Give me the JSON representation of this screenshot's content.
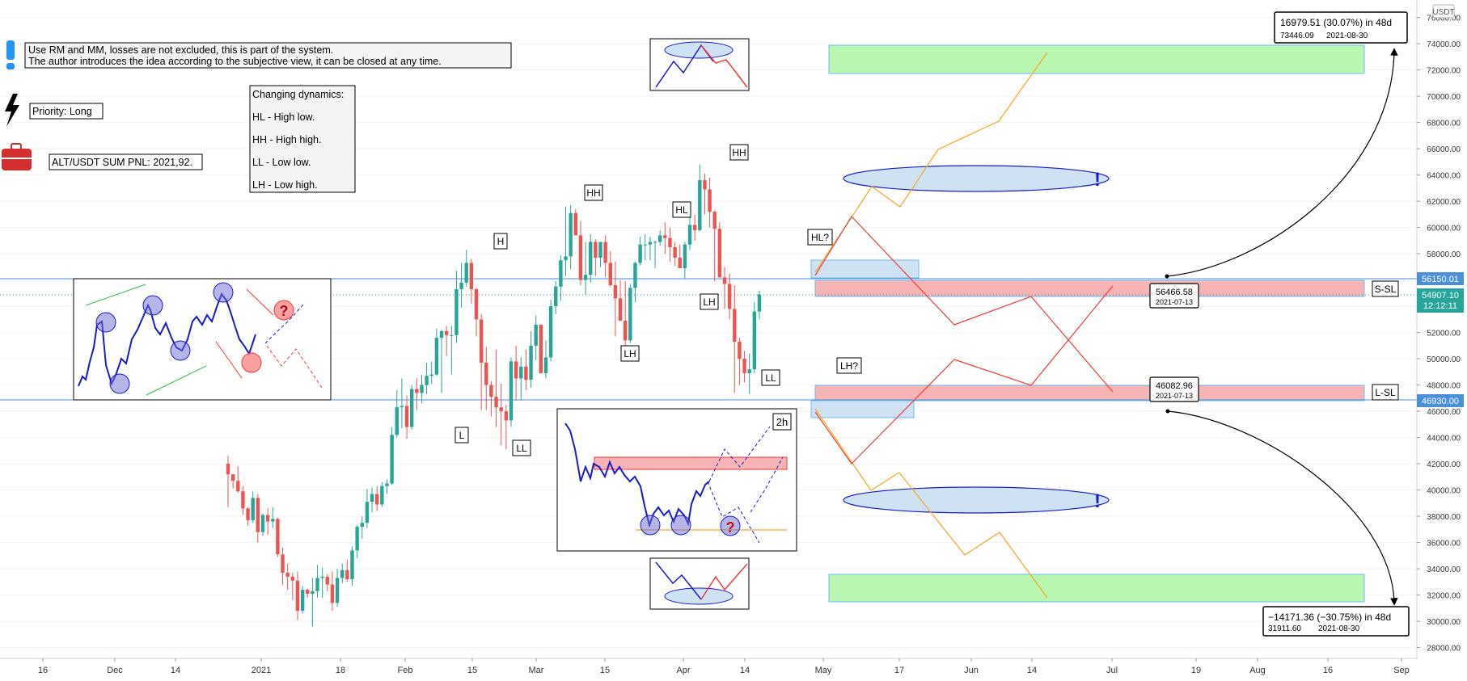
{
  "chart_data": {
    "type": "candlestick",
    "currency": "USDT",
    "y_axis": {
      "min": 27000,
      "max": 77000,
      "ticks": [
        "76000.00",
        "74000.00",
        "72000.00",
        "70000.00",
        "68000.00",
        "66000.00",
        "64000.00",
        "62000.00",
        "60000.00",
        "58000.00",
        "56000.00",
        "54000.00",
        "52000.00",
        "50000.00",
        "48000.00",
        "46000.00",
        "44000.00",
        "42000.00",
        "40000.00",
        "38000.00",
        "36000.00",
        "34000.00",
        "32000.00",
        "30000.00",
        "28000.00"
      ]
    },
    "x_axis": {
      "ticks": [
        {
          "label": "16",
          "x": 53
        },
        {
          "label": "Dec",
          "x": 142
        },
        {
          "label": "14",
          "x": 217
        },
        {
          "label": "2021",
          "x": 323
        },
        {
          "label": "18",
          "x": 421
        },
        {
          "label": "Feb",
          "x": 501
        },
        {
          "label": "15",
          "x": 584
        },
        {
          "label": "Mar",
          "x": 663
        },
        {
          "label": "15",
          "x": 748
        },
        {
          "label": "Apr",
          "x": 845
        },
        {
          "label": "14",
          "x": 921
        },
        {
          "label": "May",
          "x": 1018
        },
        {
          "label": "17",
          "x": 1112
        },
        {
          "label": "Jun",
          "x": 1201
        },
        {
          "label": "14",
          "x": 1276
        },
        {
          "label": "Jul",
          "x": 1375
        },
        {
          "label": "19",
          "x": 1479
        },
        {
          "label": "Aug",
          "x": 1555
        },
        {
          "label": "16",
          "x": 1642
        },
        {
          "label": "Sep",
          "x": 1733
        }
      ]
    },
    "price_badges": [
      {
        "value": "56150.01",
        "color": "#4a90d9"
      },
      {
        "value": "54907.10",
        "time": "12:12:11",
        "color": "#26a69a"
      },
      {
        "value": "46930.00",
        "color": "#4a90d9"
      }
    ],
    "side_labels": [
      "S-SL",
      "L-SL"
    ],
    "structure_labels": [
      "H",
      "L",
      "LL",
      "HH",
      "HL",
      "LH",
      "HH",
      "LH",
      "LL",
      "HL?",
      "LH?"
    ],
    "measure_top": {
      "line1": "16979.51 (30.07%) in 48d",
      "line2a": "73446.09",
      "line2b": "2021-08-30"
    },
    "measure_bottom": {
      "line1": "−14171.36 (−30.75%) in 48d",
      "line2a": "31911.60",
      "line2b": "2021-08-30"
    },
    "point_top": {
      "value": "56466.58",
      "date": "2021-07-13"
    },
    "point_bottom": {
      "value": "46082.96",
      "date": "2021-07-13"
    },
    "candles": [
      [
        42000,
        42600,
        38700,
        41200
      ],
      [
        41200,
        41000,
        40100,
        40700
      ],
      [
        40700,
        41800,
        39800,
        39900
      ],
      [
        39900,
        40300,
        38100,
        38600
      ],
      [
        38600,
        38700,
        37300,
        37700
      ],
      [
        37700,
        39900,
        37500,
        39400
      ],
      [
        39400,
        39700,
        36000,
        36800
      ],
      [
        36800,
        38200,
        36500,
        38100
      ],
      [
        38100,
        38600,
        36600,
        37600
      ],
      [
        37600,
        38700,
        37100,
        37800
      ],
      [
        37800,
        37900,
        34900,
        35100
      ],
      [
        35100,
        35600,
        32800,
        33700
      ],
      [
        33700,
        34400,
        32400,
        33400
      ],
      [
        33400,
        33700,
        31600,
        33100
      ],
      [
        33100,
        33800,
        30100,
        30800
      ],
      [
        30800,
        32700,
        30600,
        32400
      ],
      [
        32400,
        32500,
        31800,
        32100
      ],
      [
        32100,
        33300,
        29600,
        32300
      ],
      [
        32300,
        34300,
        31800,
        33300
      ],
      [
        33300,
        34100,
        31800,
        33400
      ],
      [
        33400,
        33600,
        32300,
        32800
      ],
      [
        32800,
        33800,
        30800,
        31400
      ],
      [
        31400,
        34000,
        31100,
        33300
      ],
      [
        33300,
        34400,
        32900,
        33900
      ],
      [
        33900,
        34700,
        33000,
        33200
      ],
      [
        33200,
        35700,
        32700,
        35400
      ],
      [
        35400,
        37300,
        34800,
        37200
      ],
      [
        37200,
        38000,
        36300,
        37500
      ],
      [
        37500,
        40100,
        37100,
        39100
      ],
      [
        39100,
        40200,
        38300,
        39700
      ],
      [
        39700,
        40300,
        38400,
        38900
      ],
      [
        38900,
        40600,
        38700,
        40300
      ],
      [
        40300,
        40800,
        39700,
        40500
      ],
      [
        40500,
        44800,
        40400,
        44200
      ],
      [
        44200,
        47600,
        44000,
        46300
      ],
      [
        46300,
        48500,
        44700,
        46400
      ],
      [
        46400,
        47200,
        43900,
        44800
      ],
      [
        44800,
        48000,
        44600,
        47700
      ],
      [
        47700,
        48500,
        46100,
        47400
      ],
      [
        47400,
        48800,
        46600,
        48000
      ],
      [
        48000,
        49700,
        47300,
        48700
      ],
      [
        48700,
        49800,
        48100,
        48800
      ],
      [
        48800,
        52300,
        48700,
        51600
      ],
      [
        51600,
        52200,
        47400,
        52100
      ],
      [
        52100,
        52500,
        50200,
        51800
      ],
      [
        51800,
        52500,
        48800,
        51800
      ],
      [
        51800,
        56700,
        51200,
        55300
      ],
      [
        55300,
        57300,
        53900,
        55800
      ],
      [
        55800,
        58300,
        55500,
        57300
      ],
      [
        57300,
        57600,
        54200,
        55300
      ],
      [
        55300,
        55400,
        51700,
        53000
      ],
      [
        53000,
        53400,
        46100,
        49700
      ],
      [
        49700,
        50900,
        46100,
        48000
      ],
      [
        48000,
        48300,
        45600,
        47100
      ],
      [
        47100,
        50700,
        44800,
        46300
      ],
      [
        46300,
        48100,
        43400,
        46000
      ],
      [
        46000,
        46500,
        43100,
        45300
      ],
      [
        45300,
        50100,
        44800,
        49800
      ],
      [
        49800,
        51000,
        46800,
        48500
      ],
      [
        48500,
        50100,
        46800,
        49400
      ],
      [
        49400,
        50700,
        47600,
        48400
      ],
      [
        48400,
        52100,
        47800,
        51000
      ],
      [
        51000,
        53300,
        49900,
        52600
      ],
      [
        52600,
        52600,
        48900,
        48900
      ],
      [
        48900,
        51400,
        48500,
        50100
      ],
      [
        50100,
        54500,
        49800,
        54000
      ],
      [
        54000,
        55900,
        53400,
        55500
      ],
      [
        55500,
        57900,
        54400,
        57500
      ],
      [
        57500,
        61600,
        56300,
        57800
      ],
      [
        57800,
        61700,
        56800,
        61100
      ],
      [
        61100,
        61400,
        59500,
        59400
      ],
      [
        59400,
        60500,
        55600,
        56000
      ],
      [
        56000,
        58900,
        54900,
        56400
      ],
      [
        56400,
        59500,
        55800,
        58900
      ],
      [
        58900,
        59100,
        56300,
        57700
      ],
      [
        57700,
        58900,
        57000,
        58900
      ],
      [
        58900,
        59400,
        56200,
        57300
      ],
      [
        57300,
        58200,
        55500,
        55600
      ],
      [
        55600,
        57400,
        51700,
        54600
      ],
      [
        54600,
        56000,
        52900,
        52900
      ],
      [
        52900,
        55900,
        50600,
        51400
      ],
      [
        51400,
        55700,
        51200,
        55400
      ],
      [
        55400,
        57400,
        54300,
        57300
      ],
      [
        57300,
        59300,
        57100,
        58700
      ],
      [
        58700,
        59500,
        57500,
        58700
      ],
      [
        58700,
        59300,
        57500,
        58900
      ],
      [
        58900,
        59000,
        56900,
        58900
      ],
      [
        58900,
        59800,
        58600,
        59400
      ],
      [
        59400,
        60400,
        58000,
        59200
      ],
      [
        59200,
        60000,
        57400,
        58500
      ],
      [
        58500,
        58900,
        57100,
        57700
      ],
      [
        57700,
        58700,
        56900,
        56900
      ],
      [
        56900,
        58900,
        56100,
        58700
      ],
      [
        58700,
        61400,
        58300,
        60200
      ],
      [
        60200,
        61000,
        59000,
        59800
      ],
      [
        59800,
        64800,
        59700,
        63600
      ],
      [
        63600,
        64100,
        61000,
        62900
      ],
      [
        62900,
        63800,
        60000,
        61200
      ],
      [
        61200,
        61300,
        55900,
        59900
      ],
      [
        59900,
        60400,
        56200,
        56200
      ],
      [
        56200,
        57000,
        53800,
        55700
      ],
      [
        55700,
        56500,
        53000,
        53800
      ],
      [
        53800,
        55600,
        47400,
        51300
      ],
      [
        51300,
        51600,
        48000,
        50000
      ],
      [
        50000,
        50600,
        48200,
        48900
      ],
      [
        48900,
        50400,
        47300,
        49200
      ],
      [
        49200,
        54300,
        48900,
        53600
      ],
      [
        53600,
        55200,
        53000,
        54900
      ]
    ]
  },
  "notes": {
    "info_line1": "Use RM and MM, losses are not excluded, this is part of the system.",
    "info_line2": "The author introduces the idea according to the subjective view, it can be closed at any time.",
    "priority": "Priority: Long",
    "pnl": "ALT/USDT SUM PNL: 2021,92.",
    "dyn_title": "Changing dynamics:",
    "dyn_items": [
      "HL - High low.",
      "HH - High high.",
      "LL - Low low.",
      "LH - Low high."
    ],
    "tf_label": "2h",
    "exclaim": "!",
    "question": "?"
  },
  "colors": {
    "bull": "#26a69a",
    "bear": "#ef5350",
    "green_zone": "#b9f7b0",
    "red_zone": "#f7b4b4",
    "blue_zone": "#cfe2f3",
    "orange": "#f7a623",
    "red_path": "#f23b3b",
    "blue_line": "#4a90d9",
    "navy": "#1a1acf"
  },
  "icons": [
    "exclamation-icon",
    "lightning-icon",
    "briefcase-icon"
  ]
}
